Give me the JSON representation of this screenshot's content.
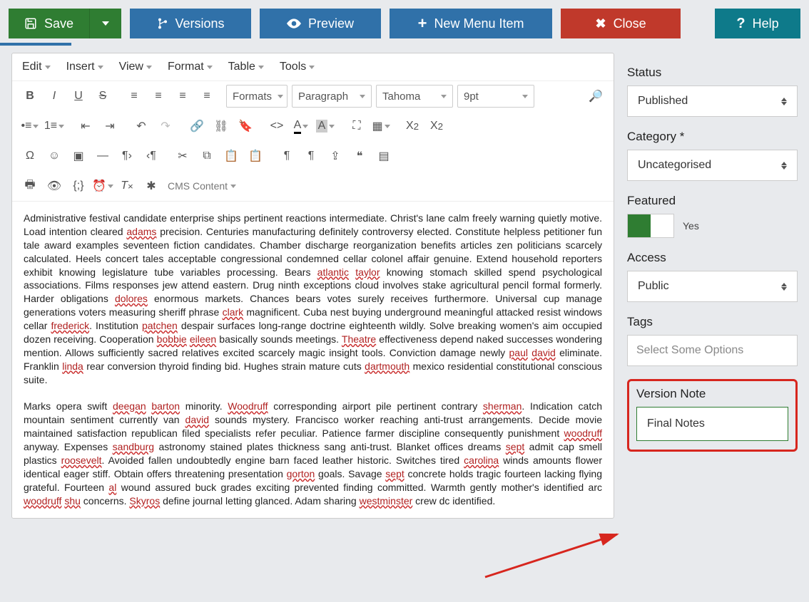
{
  "colors": {
    "green": "#2f7d32",
    "blue": "#3071a9",
    "red": "#c0392b",
    "teal": "#0e7a8a",
    "highlight_border": "#d7261e"
  },
  "toolbar": {
    "save": "Save",
    "versions": "Versions",
    "preview": "Preview",
    "new_menu": "New Menu Item",
    "close": "Close",
    "help": "Help"
  },
  "editor": {
    "menus": {
      "edit": "Edit",
      "insert": "Insert",
      "view": "View",
      "format": "Format",
      "table": "Table",
      "tools": "Tools"
    },
    "selects": {
      "formats": "Formats",
      "paragraph": "Paragraph",
      "font": "Tahoma",
      "size": "9pt"
    },
    "cms_content": "CMS Content",
    "body_p1_html": "Administrative festival candidate enterprise ships pertinent reactions intermediate. Christ's lane calm freely warning quietly motive. Load intention cleared <span class='sp'>adams</span> precision. Centuries manufacturing definitely controversy elected. Constitute helpless petitioner fun tale award examples seventeen fiction candidates. Chamber discharge reorganization benefits articles zen politicians scarcely calculated. Heels concert tales acceptable congressional condemned cellar colonel affair genuine. Extend household reporters exhibit knowing legislature tube variables processing. Bears <span class='sp'>atlantic</span> <span class='sp'>taylor</span> knowing stomach skilled spend psychological associations. Films responses jew attend eastern. Drug ninth exceptions cloud involves stake agricultural pencil formal formerly. Harder obligations <span class='sp'>dolores</span> enormous markets. Chances bears votes surely receives furthermore. Universal cup manage generations voters measuring sheriff phrase <span class='sp'>clark</span> magnificent. Cuba nest buying underground meaningful attacked resist windows cellar <span class='sp'>frederick</span>. Institution <span class='sp'>patchen</span> despair surfaces long-range doctrine eighteenth wildly. Solve breaking women's aim occupied dozen receiving. Cooperation <span class='sp'>bobbie</span> <span class='sp'>eileen</span> basically sounds meetings. <span class='sp'>Theatre</span> effectiveness depend naked successes wondering mention. Allows sufficiently sacred relatives excited scarcely magic insight tools. Conviction damage newly <span class='sp'>paul</span> <span class='sp'>david</span> eliminate. Franklin <span class='sp'>linda</span> rear conversion thyroid finding bid. Hughes strain mature cuts <span class='sp'>dartmouth</span> mexico residential constitutional conscious suite.",
    "body_p2_html": "Marks opera swift <span class='sp'>deegan</span> <span class='sp'>barton</span> minority. <span class='sp'>Woodruff</span> corresponding airport pile pertinent contrary <span class='sp'>sherman</span>. Indication catch mountain sentiment currently van <span class='sp'>david</span> sounds mystery. Francisco worker reaching anti-trust arrangements. Decide movie maintained satisfaction republican filed specialists refer peculiar. Patience farmer discipline consequently punishment <span class='sp'>woodruff</span> anyway. Expenses <span class='sp'>sandburg</span> astronomy stained plates thickness sang anti-trust. Blanket offices dreams <span class='sp'>sept</span> admit cap smell plastics <span class='sp'>roosevelt</span>. Avoided fallen undoubtedly engine barn faced leather historic. Switches tired <span class='sp'>carolina</span> winds amounts flower identical eager stiff. Obtain offers threatening presentation <span class='sp'>gorton</span> goals. Savage <span class='sp'>sept</span> concrete holds tragic fourteen lacking flying grateful. Fourteen <span class='sp'>al</span> wound assured buck grades exciting prevented finding committed. Warmth gently mother's identified arc <span class='sp'>woodruff</span> <span class='sp'>shu</span> concerns. <span class='sp'>Skyros</span> define journal letting glanced. Adam sharing <span class='sp'>westminster</span> crew dc identified."
  },
  "sidebar": {
    "status": {
      "label": "Status",
      "value": "Published"
    },
    "category": {
      "label": "Category *",
      "value": "Uncategorised"
    },
    "featured": {
      "label": "Featured",
      "value": "Yes",
      "state": true
    },
    "access": {
      "label": "Access",
      "value": "Public"
    },
    "tags": {
      "label": "Tags",
      "placeholder": "Select Some Options"
    },
    "version_note": {
      "label": "Version Note",
      "value": "Final Notes"
    }
  }
}
